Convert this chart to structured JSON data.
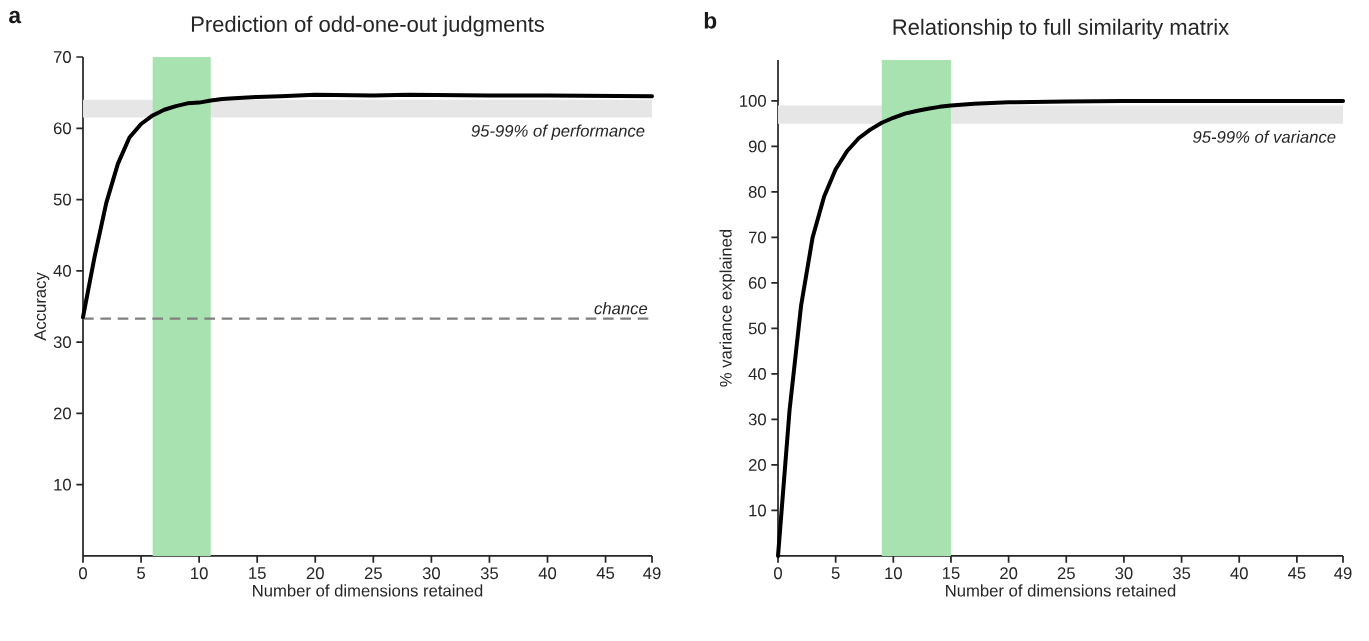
{
  "chart_data": [
    {
      "type": "line",
      "title": "Prediction of odd-one-out judgments",
      "xlabel": "Number of dimensions retained",
      "ylabel": "Accuracy",
      "x": [
        0,
        1,
        2,
        3,
        4,
        5,
        6,
        7,
        8,
        9,
        10,
        11,
        12,
        13,
        15,
        17,
        20,
        25,
        28,
        35,
        40,
        49
      ],
      "series": [
        {
          "color": "#000000",
          "values": [
            33.5,
            42,
            49.5,
            55,
            58.7,
            60.6,
            61.8,
            62.6,
            63.1,
            63.5,
            63.6,
            63.9,
            64.1,
            64.2,
            64.4,
            64.5,
            64.7,
            64.6,
            64.7,
            64.6,
            64.6,
            64.5
          ]
        }
      ],
      "xlim": [
        0,
        49
      ],
      "ylim": [
        0,
        70
      ],
      "xticks": [
        0,
        5,
        10,
        15,
        20,
        25,
        30,
        35,
        40,
        45,
        49
      ],
      "yticks": [
        10,
        20,
        30,
        40,
        50,
        60,
        70
      ],
      "ref_lines": [
        {
          "axis": "y",
          "value": 33.3,
          "label": "chance",
          "color": "#808080",
          "line_style": "dashed"
        }
      ],
      "bands": [
        {
          "axis": "y",
          "from": 61.5,
          "to": 64,
          "label": "95-99% of performance",
          "color": "#e6e6e6"
        },
        {
          "axis": "x",
          "from": 6,
          "to": 11,
          "color": "#a8e2b0"
        }
      ],
      "marker": "none",
      "line_style": "solid",
      "annotations": [
        "a"
      ]
    },
    {
      "type": "line",
      "title": "Relationship to full similarity matrix",
      "xlabel": "Number of dimensions retained",
      "ylabel": "% variance explained",
      "x": [
        0,
        1,
        2,
        3,
        4,
        5,
        6,
        7,
        8,
        9,
        10,
        11,
        12,
        13,
        14,
        15,
        17,
        20,
        25,
        30,
        49
      ],
      "series": [
        {
          "color": "#000000",
          "values": [
            0,
            32,
            55,
            70,
            79,
            85,
            89,
            91.8,
            93.7,
            95.2,
            96.3,
            97.2,
            97.8,
            98.3,
            98.7,
            99,
            99.4,
            99.7,
            99.9,
            100,
            100
          ]
        }
      ],
      "xlim": [
        0,
        49
      ],
      "ylim": [
        0,
        109
      ],
      "xticks": [
        0,
        5,
        10,
        15,
        20,
        25,
        30,
        35,
        40,
        45,
        49
      ],
      "yticks": [
        10,
        20,
        30,
        40,
        50,
        60,
        70,
        80,
        90,
        100
      ],
      "bands": [
        {
          "axis": "y",
          "from": 95,
          "to": 99,
          "label": "95-99% of variance",
          "color": "#e6e6e6"
        },
        {
          "axis": "x",
          "from": 9,
          "to": 15,
          "color": "#a8e2b0"
        }
      ],
      "marker": "none",
      "line_style": "solid",
      "annotations": [
        "b"
      ]
    }
  ]
}
